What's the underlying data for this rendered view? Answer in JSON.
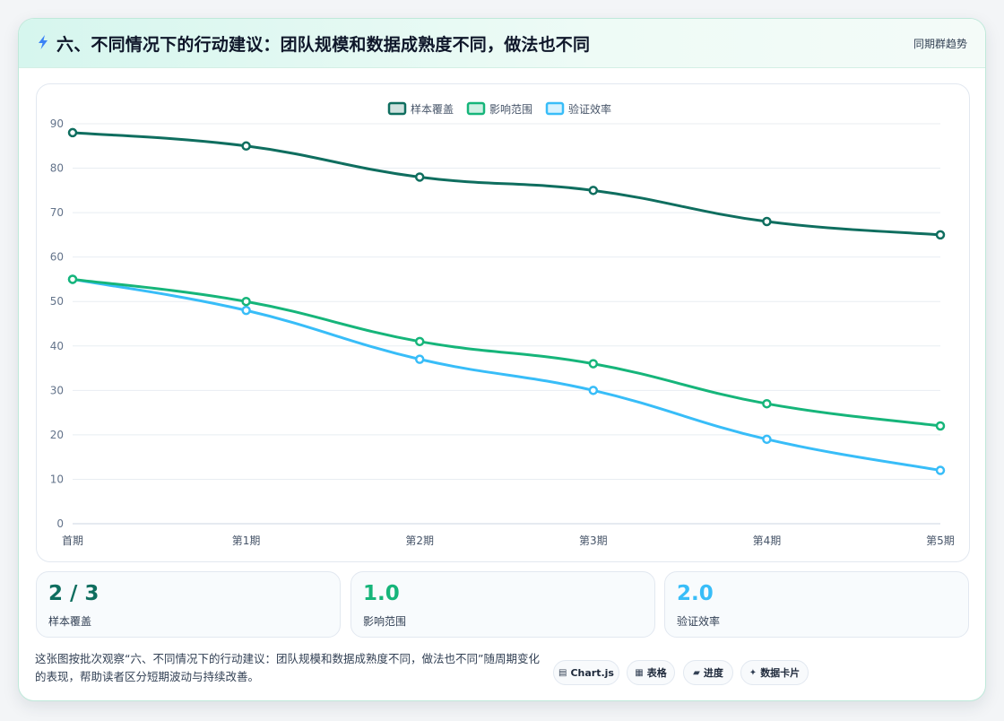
{
  "header": {
    "title": "六、不同情况下的行动建议：团队规模和数据成熟度不同，做法也不同",
    "trend_label": "同期群趋势",
    "icon": "lightning-bolt-icon"
  },
  "chart_data": {
    "type": "line",
    "categories": [
      "首期",
      "第1期",
      "第2期",
      "第3期",
      "第4期",
      "第5期"
    ],
    "series": [
      {
        "name": "样本覆盖",
        "values": [
          88,
          85,
          78,
          75,
          68,
          65
        ],
        "color": "#0f6e5f"
      },
      {
        "name": "影响范围",
        "values": [
          55,
          50,
          41,
          36,
          27,
          22
        ],
        "color": "#16b57a"
      },
      {
        "name": "验证效率",
        "values": [
          55,
          48,
          37,
          30,
          19,
          12
        ],
        "color": "#38bdf8"
      }
    ],
    "ylim": [
      0,
      90
    ],
    "yticks": [
      0,
      10,
      20,
      30,
      40,
      50,
      60,
      70,
      80,
      90
    ],
    "grid": true,
    "legend": "top-center"
  },
  "stats": [
    {
      "value": "2 / 3",
      "label": "样本覆盖",
      "color": "#0f6e5f"
    },
    {
      "value": "1.0",
      "label": "影响范围",
      "color": "#16b57a"
    },
    {
      "value": "2.0",
      "label": "验证效率",
      "color": "#38bdf8"
    }
  ],
  "footer": {
    "text": "这张图按批次观察“六、不同情况下的行动建议：团队规模和数据成熟度不同，做法也不同”随周期变化的表现，帮助读者区分短期波动与持续改善。"
  },
  "chips": [
    {
      "icon": "▤",
      "label": "Chart.js"
    },
    {
      "icon": "▦",
      "label": "表格"
    },
    {
      "icon": "▰",
      "label": "进度"
    },
    {
      "icon": "✦",
      "label": "数据卡片"
    }
  ]
}
